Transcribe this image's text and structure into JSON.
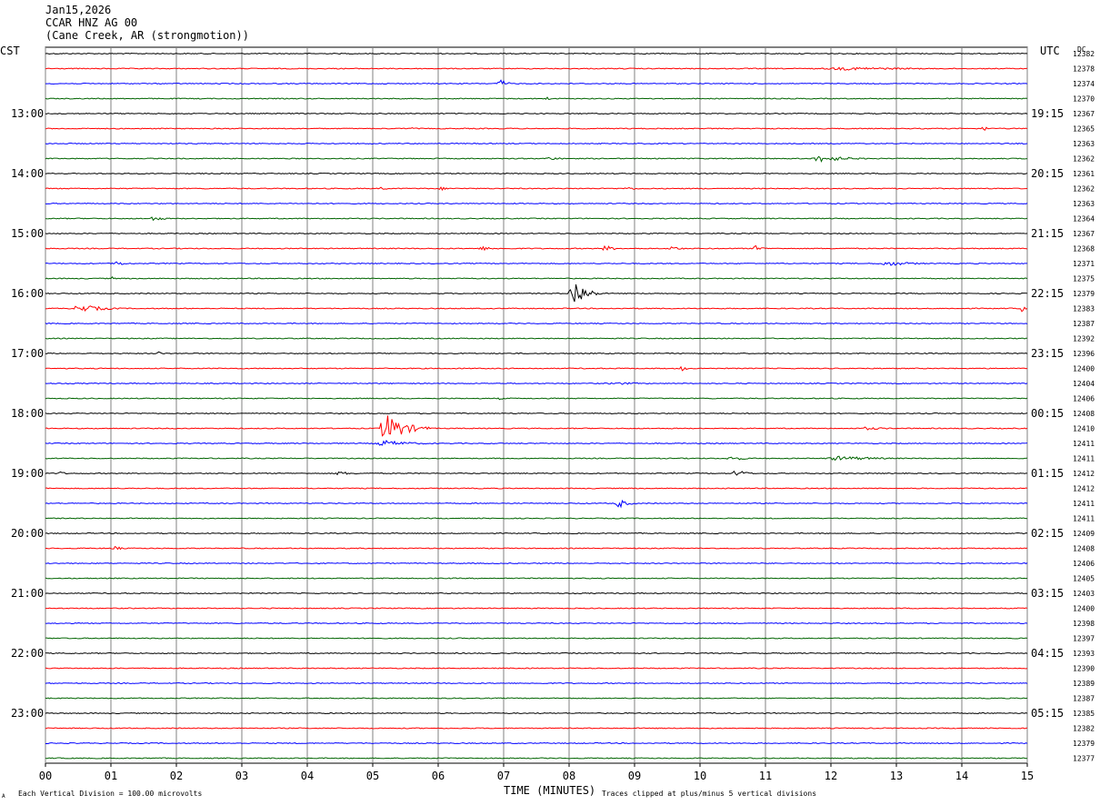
{
  "header": {
    "date": "Jan15,2026",
    "station": "CCAR HNZ AG 00",
    "location": "(Cane Creek, AR (strongmotion))"
  },
  "labels": {
    "left_timezone": "CST",
    "right_timezone": "UTC",
    "dc_header": "DC",
    "xlabel": "TIME (MINUTES)",
    "scale_note": "Each Vertical Division =  100.00 microvolts",
    "clip_note": "Traces clipped at plus/minus 5 vertical divisions",
    "logo_mark": "A"
  },
  "colors": {
    "trace_cycle": [
      "#000000",
      "#ff0000",
      "#0000ff",
      "#006400"
    ],
    "grid": "#808080",
    "background": "#ffffff"
  },
  "chart_data": {
    "type": "line",
    "title": "",
    "xlabel": "TIME (MINUTES)",
    "ylabel": "",
    "xlim": [
      0,
      15
    ],
    "x_ticks": [
      "00",
      "01",
      "02",
      "03",
      "04",
      "05",
      "06",
      "07",
      "08",
      "09",
      "10",
      "11",
      "12",
      "13",
      "14",
      "15"
    ],
    "grid": true,
    "traces_per_hour": 4,
    "left_hour_labels": [
      "13:00",
      "14:00",
      "15:00",
      "16:00",
      "17:00",
      "18:00",
      "19:00",
      "20:00",
      "21:00",
      "22:00",
      "23:00"
    ],
    "right_hour_labels": [
      "19:15",
      "20:15",
      "21:15",
      "22:15",
      "23:15",
      "00:15",
      "01:15",
      "02:15",
      "03:15",
      "04:15",
      "05:15"
    ],
    "dc_offsets": [
      12382,
      12378,
      12374,
      12370,
      12367,
      12365,
      12363,
      12362,
      12361,
      12362,
      12363,
      12364,
      12367,
      12368,
      12371,
      12375,
      12379,
      12383,
      12387,
      12392,
      12396,
      12400,
      12404,
      12406,
      12408,
      12410,
      12411,
      12411,
      12412,
      12412,
      12411,
      12411,
      12409,
      12408,
      12406,
      12405,
      12403,
      12400,
      12398,
      12397,
      12393,
      12390,
      12389,
      12387,
      12385,
      12382,
      12379,
      12377
    ],
    "events": [
      {
        "trace": 1,
        "start": 11.8,
        "end": 15.0,
        "amplitude": 0.2
      },
      {
        "trace": 2,
        "start": 6.9,
        "end": 7.2,
        "amplitude": 0.6
      },
      {
        "trace": 3,
        "start": 7.6,
        "end": 7.9,
        "amplitude": 0.25
      },
      {
        "trace": 5,
        "start": 5.6,
        "end": 5.7,
        "amplitude": 0.35
      },
      {
        "trace": 5,
        "start": 14.3,
        "end": 14.5,
        "amplitude": 0.4
      },
      {
        "trace": 7,
        "start": 11.7,
        "end": 12.8,
        "amplitude": 0.45
      },
      {
        "trace": 7,
        "start": 7.6,
        "end": 8.3,
        "amplitude": 0.2
      },
      {
        "trace": 9,
        "start": 5.1,
        "end": 5.3,
        "amplitude": 0.3
      },
      {
        "trace": 9,
        "start": 6.0,
        "end": 6.4,
        "amplitude": 0.2
      },
      {
        "trace": 9,
        "start": 8.8,
        "end": 9.4,
        "amplitude": 0.2
      },
      {
        "trace": 11,
        "start": 1.6,
        "end": 2.0,
        "amplitude": 0.35
      },
      {
        "trace": 13,
        "start": 6.6,
        "end": 7.2,
        "amplitude": 0.25
      },
      {
        "trace": 13,
        "start": 8.5,
        "end": 8.9,
        "amplitude": 0.4
      },
      {
        "trace": 13,
        "start": 9.5,
        "end": 9.9,
        "amplitude": 0.35
      },
      {
        "trace": 13,
        "start": 10.8,
        "end": 11.1,
        "amplitude": 0.45
      },
      {
        "trace": 14,
        "start": 1.0,
        "end": 1.5,
        "amplitude": 0.3
      },
      {
        "trace": 14,
        "start": 12.7,
        "end": 13.9,
        "amplitude": 0.3
      },
      {
        "trace": 15,
        "start": 1.0,
        "end": 1.1,
        "amplitude": 0.3
      },
      {
        "trace": 16,
        "start": 8.0,
        "end": 8.5,
        "amplitude": 2.0
      },
      {
        "trace": 17,
        "start": 0.4,
        "end": 1.4,
        "amplitude": 0.5
      },
      {
        "trace": 17,
        "start": 14.9,
        "end": 15.0,
        "amplitude": 0.6
      },
      {
        "trace": 18,
        "start": 0.0,
        "end": 0.1,
        "amplitude": 0.4
      },
      {
        "trace": 20,
        "start": 1.7,
        "end": 1.9,
        "amplitude": 0.25
      },
      {
        "trace": 21,
        "start": 9.7,
        "end": 9.85,
        "amplitude": 0.5
      },
      {
        "trace": 22,
        "start": 8.5,
        "end": 10.2,
        "amplitude": 0.15
      },
      {
        "trace": 23,
        "start": 6.9,
        "end": 7.2,
        "amplitude": 0.15
      },
      {
        "trace": 25,
        "start": 5.1,
        "end": 5.9,
        "amplitude": 1.9
      },
      {
        "trace": 25,
        "start": 12.4,
        "end": 13.4,
        "amplitude": 0.2
      },
      {
        "trace": 26,
        "start": 5.0,
        "end": 6.2,
        "amplitude": 0.4
      },
      {
        "trace": 27,
        "start": 10.4,
        "end": 11.0,
        "amplitude": 0.3
      },
      {
        "trace": 27,
        "start": 11.9,
        "end": 13.6,
        "amplitude": 0.3
      },
      {
        "trace": 28,
        "start": 0.2,
        "end": 0.4,
        "amplitude": 0.3
      },
      {
        "trace": 28,
        "start": 4.4,
        "end": 5.1,
        "amplitude": 0.25
      },
      {
        "trace": 28,
        "start": 10.5,
        "end": 10.9,
        "amplitude": 0.55
      },
      {
        "trace": 30,
        "start": 8.7,
        "end": 9.1,
        "amplitude": 0.6
      },
      {
        "trace": 33,
        "start": 1.0,
        "end": 1.3,
        "amplitude": 0.35
      }
    ]
  }
}
